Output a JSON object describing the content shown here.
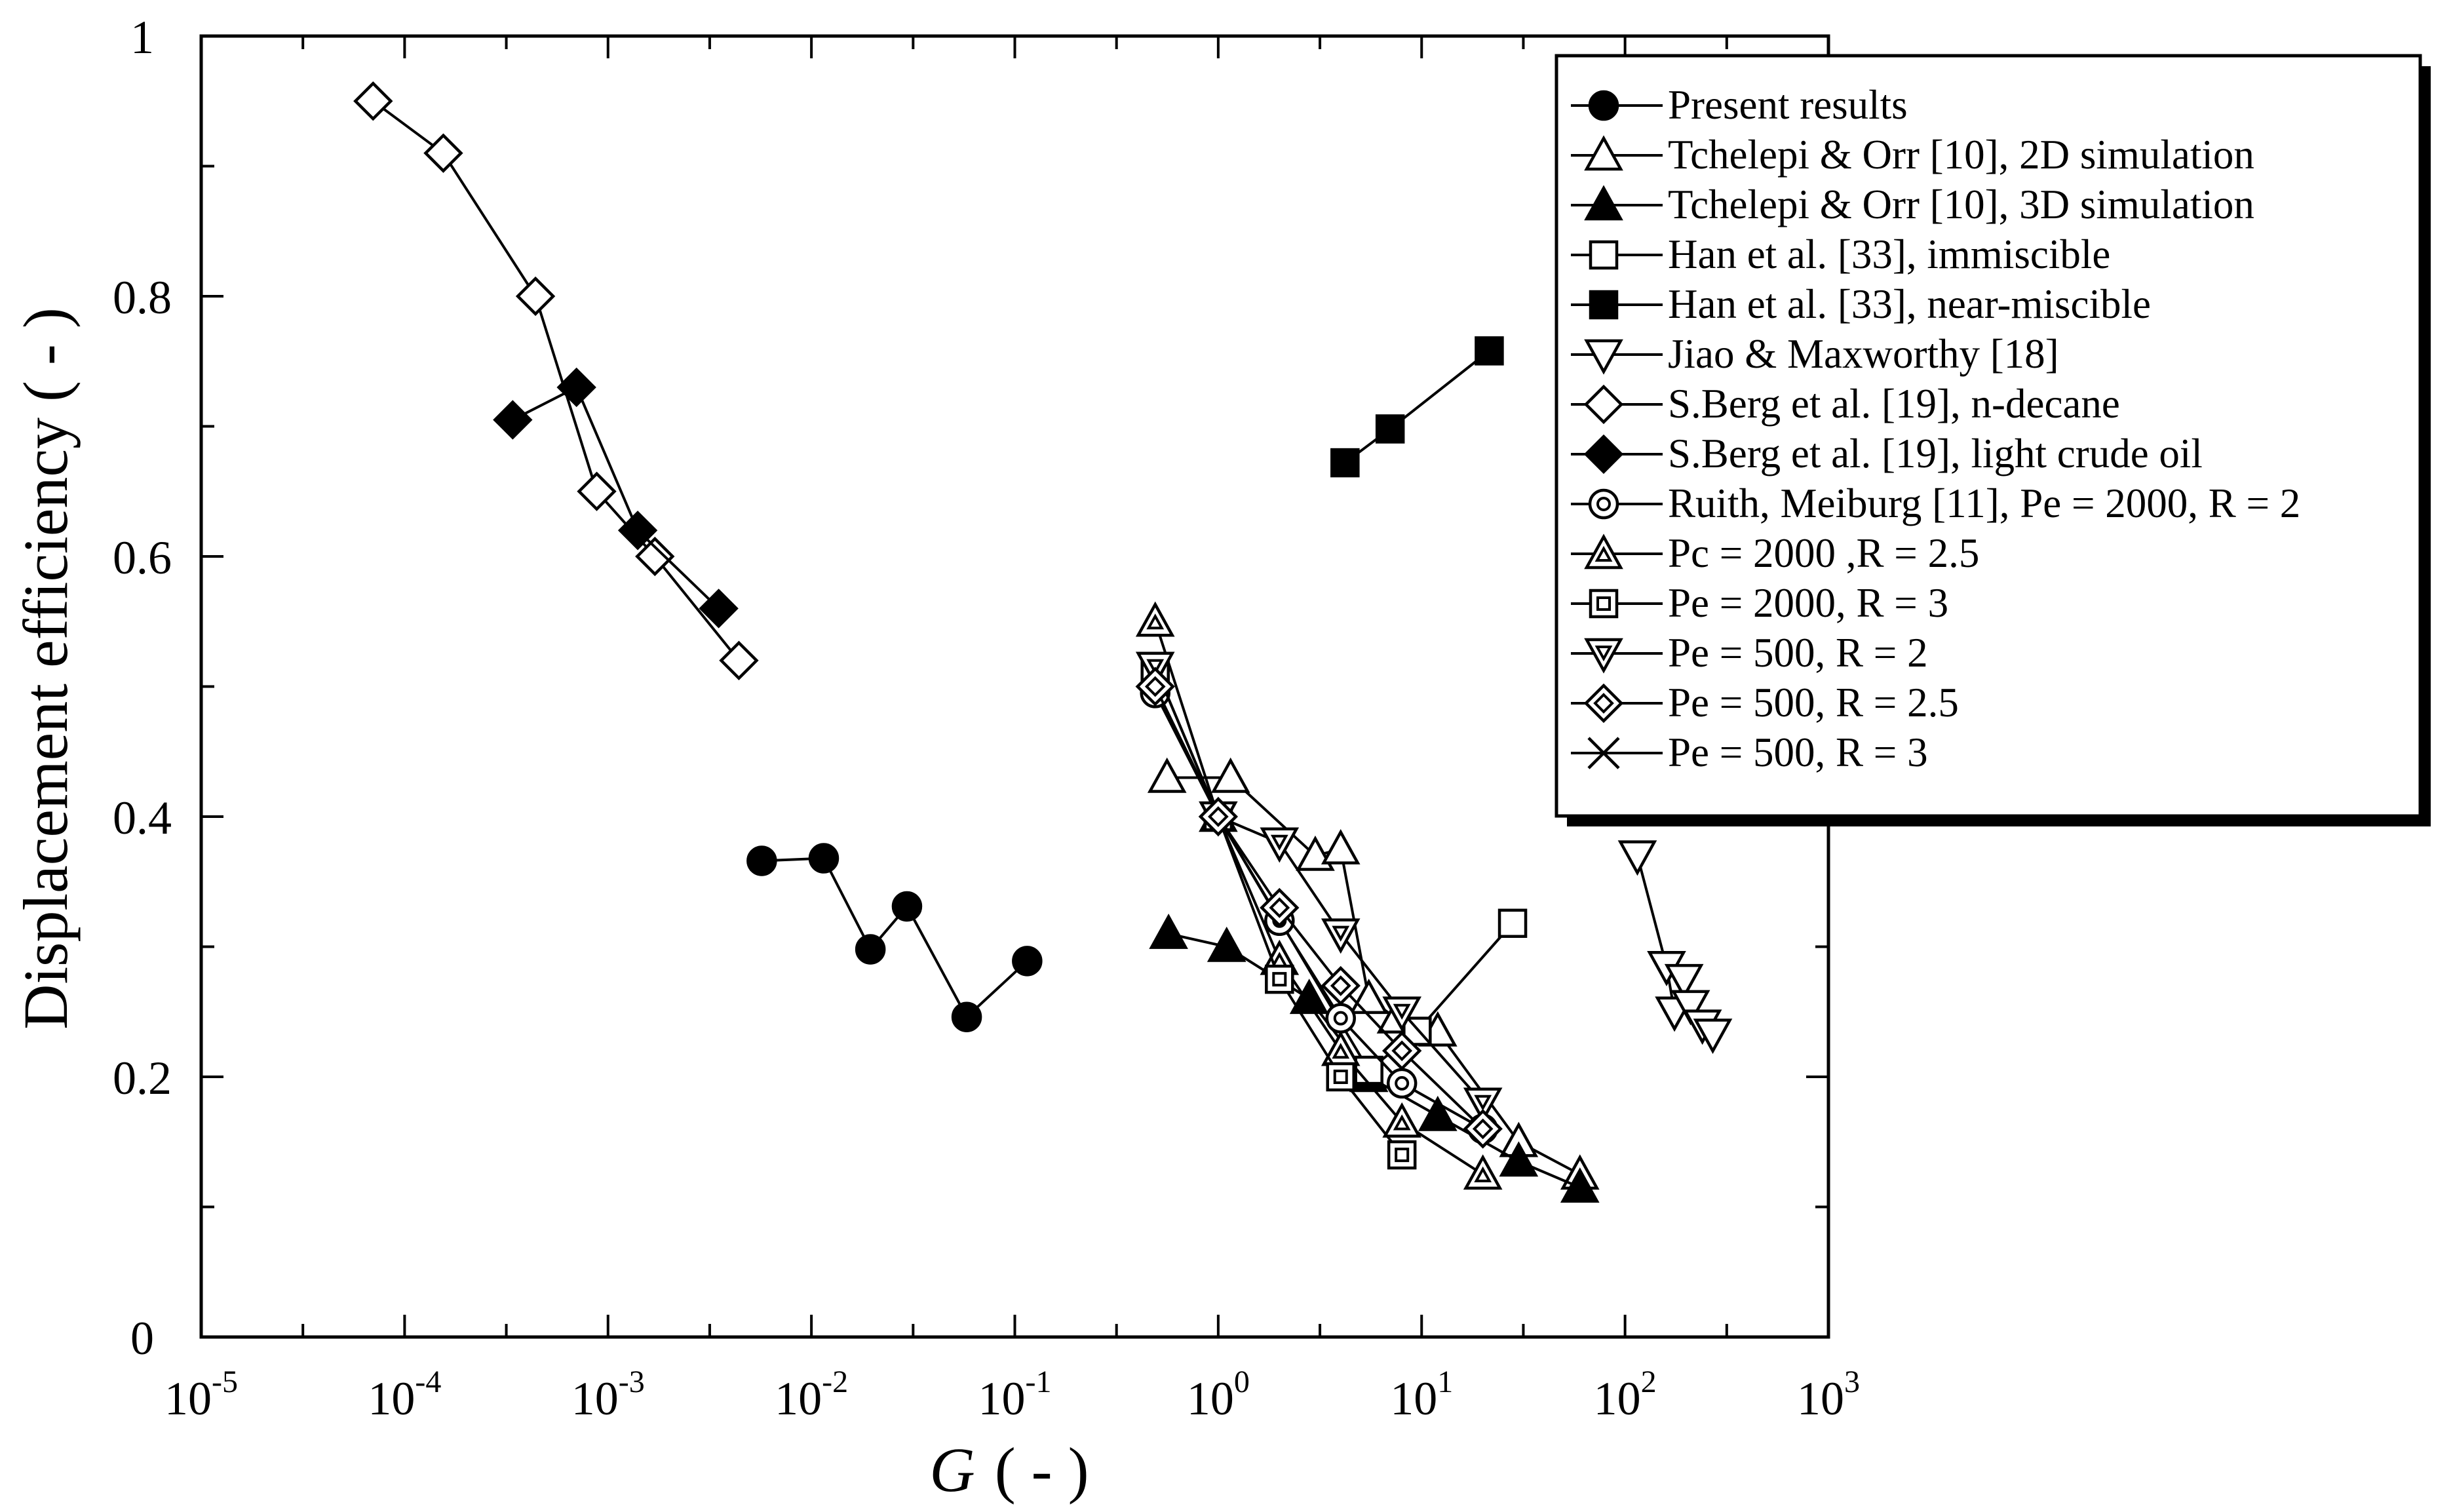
{
  "chart_data": {
    "type": "scatter",
    "title": "",
    "xscale": "log",
    "xlim": [
      1e-05,
      1000
    ],
    "ylim": [
      0,
      1
    ],
    "xlabel_symbol": "G",
    "xlabel_unit": "( - )",
    "ylabel": "Displacement efficiency ( - )",
    "x_ticks": [
      {
        "value": 1e-05,
        "base": "10",
        "exp": "-5"
      },
      {
        "value": 0.0001,
        "base": "10",
        "exp": "-4"
      },
      {
        "value": 0.001,
        "base": "10",
        "exp": "-3"
      },
      {
        "value": 0.01,
        "base": "10",
        "exp": "-2"
      },
      {
        "value": 0.1,
        "base": "10",
        "exp": "-1"
      },
      {
        "value": 1,
        "base": "10",
        "exp": "0"
      },
      {
        "value": 10,
        "base": "10",
        "exp": "1"
      },
      {
        "value": 100,
        "base": "10",
        "exp": "2"
      },
      {
        "value": 1000,
        "base": "10",
        "exp": "3"
      }
    ],
    "y_ticks": [
      {
        "value": 0,
        "label": "0"
      },
      {
        "value": 0.2,
        "label": "0.2"
      },
      {
        "value": 0.4,
        "label": "0.4"
      },
      {
        "value": 0.6,
        "label": "0.6"
      },
      {
        "value": 0.8,
        "label": "0.8"
      },
      {
        "value": 1,
        "label": "1"
      }
    ],
    "legend_position": "top-right",
    "series": [
      {
        "name": "Present results",
        "marker": "circle-filled",
        "x": [
          0.0057,
          0.0115,
          0.0195,
          0.0295,
          0.058,
          0.115
        ],
        "y": [
          0.366,
          0.368,
          0.298,
          0.331,
          0.246,
          0.289
        ]
      },
      {
        "name": "Tchelepi & Orr [10], 2D simulation",
        "marker": "triangle-up-open",
        "x": [
          0.56,
          1.15,
          3.0,
          4.0,
          5.5,
          7.5,
          12,
          30,
          60
        ],
        "y": [
          0.43,
          0.43,
          0.37,
          0.375,
          0.26,
          0.245,
          0.235,
          0.15,
          0.125
        ]
      },
      {
        "name": "Tchelepi & Orr [10], 3D simulation",
        "marker": "triangle-up-filled",
        "x": [
          0.57,
          1.1,
          2.8,
          5.5,
          12,
          30,
          60
        ],
        "y": [
          0.31,
          0.3,
          0.26,
          0.2,
          0.17,
          0.135,
          0.115
        ]
      },
      {
        "name": "Han et al.  [33], immiscible",
        "marker": "square-open",
        "x": [
          1.0,
          5.5,
          9.5,
          28
        ],
        "y": [
          0.4,
          0.205,
          0.235,
          0.318
        ]
      },
      {
        "name": "Han et al. [33], near-miscible",
        "marker": "square-filled",
        "x": [
          4.2,
          7.0,
          21.5
        ],
        "y": [
          0.672,
          0.698,
          0.758
        ]
      },
      {
        "name": "Jiao & Maxworthy [18]",
        "marker": "triangle-down-open",
        "x": [
          115,
          160,
          175,
          195,
          210,
          240,
          270
        ],
        "y": [
          0.37,
          0.285,
          0.25,
          0.275,
          0.255,
          0.24,
          0.233
        ]
      },
      {
        "name": "S.Berg et al. [19], n-decane",
        "marker": "diamond-open",
        "x": [
          7e-05,
          0.000155,
          0.00044,
          0.00088,
          0.0017,
          0.0044
        ],
        "y": [
          0.95,
          0.91,
          0.8,
          0.65,
          0.6,
          0.52
        ]
      },
      {
        "name": "S.Berg et al. [19], light crude oil",
        "marker": "diamond-filled",
        "x": [
          0.00034,
          0.0007,
          0.0014,
          0.0035
        ],
        "y": [
          0.705,
          0.73,
          0.62,
          0.56
        ]
      },
      {
        "name": "Ruith, Meiburg [11], Pe = 2000, R = 2",
        "marker": "circle-dot",
        "x": [
          0.49,
          1.0,
          2.0,
          4.0,
          8.0,
          20
        ],
        "y": [
          0.495,
          0.4,
          0.32,
          0.245,
          0.195,
          0.16
        ]
      },
      {
        "name": "Pc = 2000 ,R = 2.5",
        "marker": "triangle-up-dot",
        "x": [
          0.49,
          1.0,
          2.0,
          4.0,
          8.0,
          20
        ],
        "y": [
          0.55,
          0.4,
          0.29,
          0.22,
          0.165,
          0.125
        ]
      },
      {
        "name": "Pe = 2000, R = 3",
        "marker": "square-dot",
        "x": [
          0.49,
          1.0,
          2.0,
          4.0,
          8.0
        ],
        "y": [
          0.515,
          0.4,
          0.275,
          0.2,
          0.14
        ]
      },
      {
        "name": "Pe = 500, R = 2",
        "marker": "triangle-down-dot",
        "x": [
          0.49,
          1.0,
          2.0,
          4.0,
          8.0,
          20
        ],
        "y": [
          0.515,
          0.4,
          0.38,
          0.31,
          0.25,
          0.18
        ]
      },
      {
        "name": "Pe = 500, R = 2.5",
        "marker": "diamond-dot",
        "x": [
          0.49,
          1.0,
          2.0,
          4.0,
          8.0,
          20
        ],
        "y": [
          0.5,
          0.4,
          0.33,
          0.27,
          0.22,
          0.16
        ]
      },
      {
        "name": "Pe = 500, R = 3",
        "marker": "x",
        "x": [],
        "y": []
      }
    ]
  }
}
